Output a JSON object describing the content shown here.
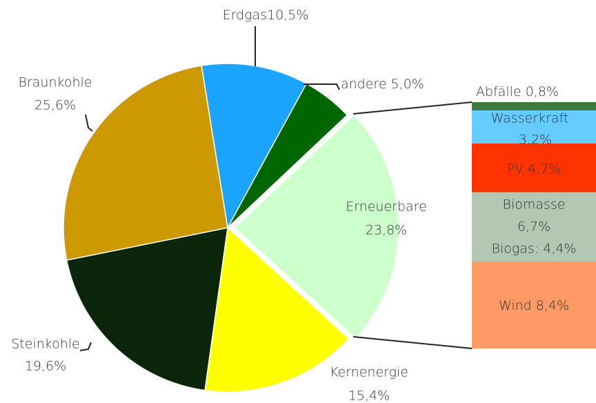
{
  "chart_data": {
    "type": "pie",
    "categories": [
      "Erneuerbare",
      "Kernenergie",
      "Steinkohle",
      "Braunkohle",
      "Erdgas",
      "andere"
    ],
    "values": [
      23.8,
      15.4,
      19.6,
      25.6,
      10.5,
      5.0
    ],
    "value_labels": [
      "23,8%",
      "15,4%",
      "19,6%",
      "25,6%",
      "10,5%",
      "5,0%"
    ],
    "colors": [
      "#ccffcc",
      "#ffff00",
      "#0b260b",
      "#cc9900",
      "#1aa3ff",
      "#006600"
    ],
    "breakdown": {
      "categories": [
        "Abfälle",
        "Wasserkraft",
        "PV",
        "Biomasse",
        "Wind"
      ],
      "values": [
        0.8,
        3.2,
        4.7,
        6.7,
        8.4
      ],
      "value_labels": [
        "0,8%",
        "3,2%",
        "4,7%",
        "6,7%",
        "8,4%"
      ],
      "colors": [
        "#3d7a3d",
        "#66ccff",
        "#ff3300",
        "#b3c8b3",
        "#ff9966"
      ],
      "annotation": "Biogas: 4,4%"
    }
  }
}
